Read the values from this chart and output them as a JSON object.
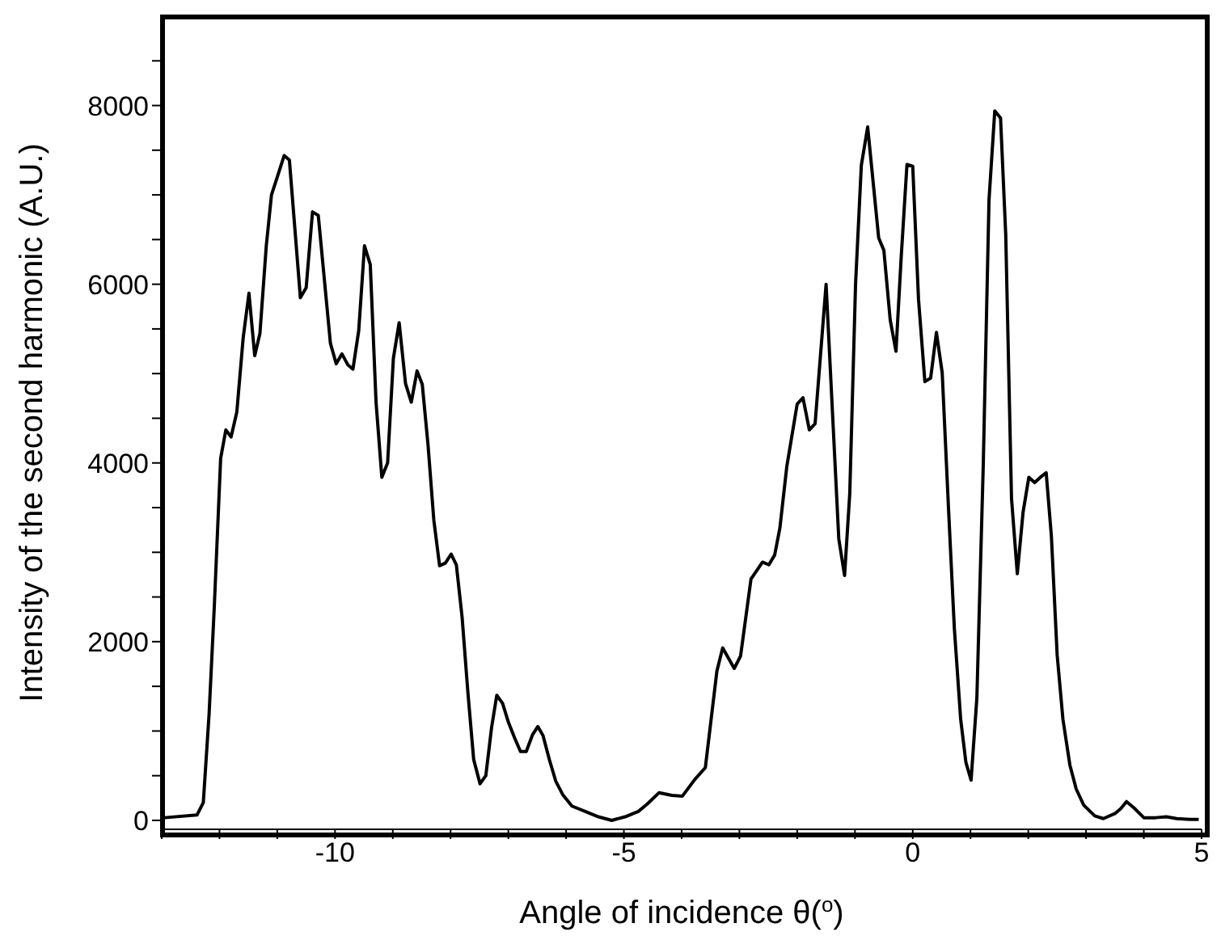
{
  "chart_data": {
    "type": "line",
    "xlabel": "Angle of incidence θ($^{o}$)",
    "ylabel": "Intensity of the second harmonic (A.U.)",
    "xlim": [
      -13,
      5
    ],
    "ylim": [
      -100,
      9000
    ],
    "xticks": [
      {
        "value": -13,
        "label": null
      },
      {
        "value": -12,
        "label": null
      },
      {
        "value": -11,
        "label": null
      },
      -10,
      {
        "value": -9,
        "label": null
      },
      {
        "value": -8,
        "label": null
      },
      {
        "value": -7,
        "label": null
      },
      {
        "value": -6,
        "label": null
      },
      -5,
      {
        "value": -4,
        "label": null
      },
      {
        "value": -3,
        "label": null
      },
      {
        "value": -2,
        "label": null
      },
      {
        "value": -1,
        "label": null
      },
      0,
      {
        "value": 1,
        "label": null
      },
      {
        "value": 2,
        "label": null
      },
      {
        "value": 3,
        "label": null
      },
      {
        "value": 4,
        "label": null
      },
      5
    ],
    "yticks": [
      0,
      {
        "value": 500,
        "label": null
      },
      {
        "value": 1000,
        "label": null
      },
      {
        "value": 1500,
        "label": null
      },
      2000,
      {
        "value": 2500,
        "label": null
      },
      {
        "value": 3000,
        "label": null
      },
      {
        "value": 3500,
        "label": null
      },
      4000,
      {
        "value": 4500,
        "label": null
      },
      {
        "value": 5000,
        "label": null
      },
      {
        "value": 5500,
        "label": null
      },
      6000,
      {
        "value": 6500,
        "label": null
      },
      {
        "value": 7000,
        "label": null
      },
      {
        "value": 7500,
        "label": null
      },
      8000,
      {
        "value": 8500,
        "label": null
      }
    ],
    "marker": "none",
    "line_style": "solid",
    "series": [
      {
        "color": "#000000",
        "x": [
          -12.95,
          -12.39,
          -12.28,
          -12.18,
          -12.09,
          -11.98,
          -11.89,
          -11.8,
          -11.7,
          -11.59,
          -11.49,
          -11.39,
          -11.3,
          -11.19,
          -11.1,
          -10.99,
          -10.88,
          -10.79,
          -10.6,
          -10.5,
          -10.39,
          -10.29,
          -10.08,
          -9.98,
          -9.88,
          -9.78,
          -9.69,
          -9.59,
          -9.49,
          -9.39,
          -9.29,
          -9.19,
          -9.09,
          -8.99,
          -8.89,
          -8.78,
          -8.68,
          -8.58,
          -8.49,
          -8.39,
          -8.29,
          -8.19,
          -8.09,
          -7.99,
          -7.9,
          -7.8,
          -7.7,
          -7.6,
          -7.49,
          -7.39,
          -7.29,
          -7.2,
          -7.1,
          -7.0,
          -6.89,
          -6.79,
          -6.69,
          -6.58,
          -6.49,
          -6.4,
          -6.29,
          -6.18,
          -6.06,
          -5.9,
          -5.67,
          -5.44,
          -5.21,
          -4.98,
          -4.75,
          -4.6,
          -4.39,
          -4.17,
          -3.99,
          -3.77,
          -3.59,
          -3.49,
          -3.39,
          -3.29,
          -3.09,
          -2.98,
          -2.8,
          -2.6,
          -2.49,
          -2.39,
          -2.3,
          -2.18,
          -2.0,
          -1.9,
          -1.79,
          -1.69,
          -1.5,
          -1.28,
          -1.18,
          -1.09,
          -0.99,
          -0.89,
          -0.78,
          -0.59,
          -0.5,
          -0.39,
          -0.29,
          -0.2,
          -0.1,
          0.0,
          0.1,
          0.21,
          0.31,
          0.41,
          0.51,
          0.62,
          0.72,
          0.83,
          0.92,
          1.01,
          1.11,
          1.22,
          1.32,
          1.42,
          1.52,
          1.61,
          1.71,
          1.81,
          1.91,
          2.01,
          2.11,
          2.21,
          2.31,
          2.4,
          2.5,
          2.6,
          2.72,
          2.83,
          2.96,
          3.15,
          3.3,
          3.51,
          3.6,
          3.7,
          3.83,
          4.0,
          4.2,
          4.39,
          4.57,
          4.8,
          4.95
        ],
        "values": [
          30,
          60,
          200,
          1190,
          2390,
          4050,
          4370,
          4290,
          4570,
          5400,
          5900,
          5200,
          5450,
          6430,
          7000,
          7220,
          7440,
          7390,
          5850,
          5960,
          6810,
          6770,
          5340,
          5110,
          5220,
          5100,
          5050,
          5480,
          6430,
          6220,
          4680,
          3840,
          4000,
          5170,
          5570,
          4890,
          4680,
          5030,
          4880,
          4200,
          3360,
          2850,
          2880,
          2980,
          2860,
          2270,
          1430,
          680,
          410,
          500,
          1040,
          1400,
          1310,
          1100,
          920,
          770,
          770,
          960,
          1050,
          950,
          680,
          440,
          290,
          160,
          100,
          40,
          0,
          40,
          100,
          180,
          310,
          280,
          270,
          460,
          590,
          1130,
          1670,
          1930,
          1700,
          1840,
          2700,
          2890,
          2860,
          2970,
          3270,
          3960,
          4660,
          4730,
          4370,
          4440,
          6000,
          3150,
          2740,
          3660,
          6000,
          7330,
          7760,
          6520,
          6380,
          5600,
          5250,
          6300,
          7340,
          7320,
          5830,
          4910,
          4950,
          5460,
          5010,
          3480,
          2150,
          1130,
          650,
          450,
          1370,
          3960,
          6940,
          7940,
          7860,
          6550,
          3600,
          2760,
          3450,
          3840,
          3780,
          3840,
          3890,
          3180,
          1850,
          1130,
          620,
          350,
          170,
          50,
          20,
          80,
          130,
          210,
          140,
          30,
          30,
          40,
          20,
          10,
          10
        ]
      }
    ]
  }
}
